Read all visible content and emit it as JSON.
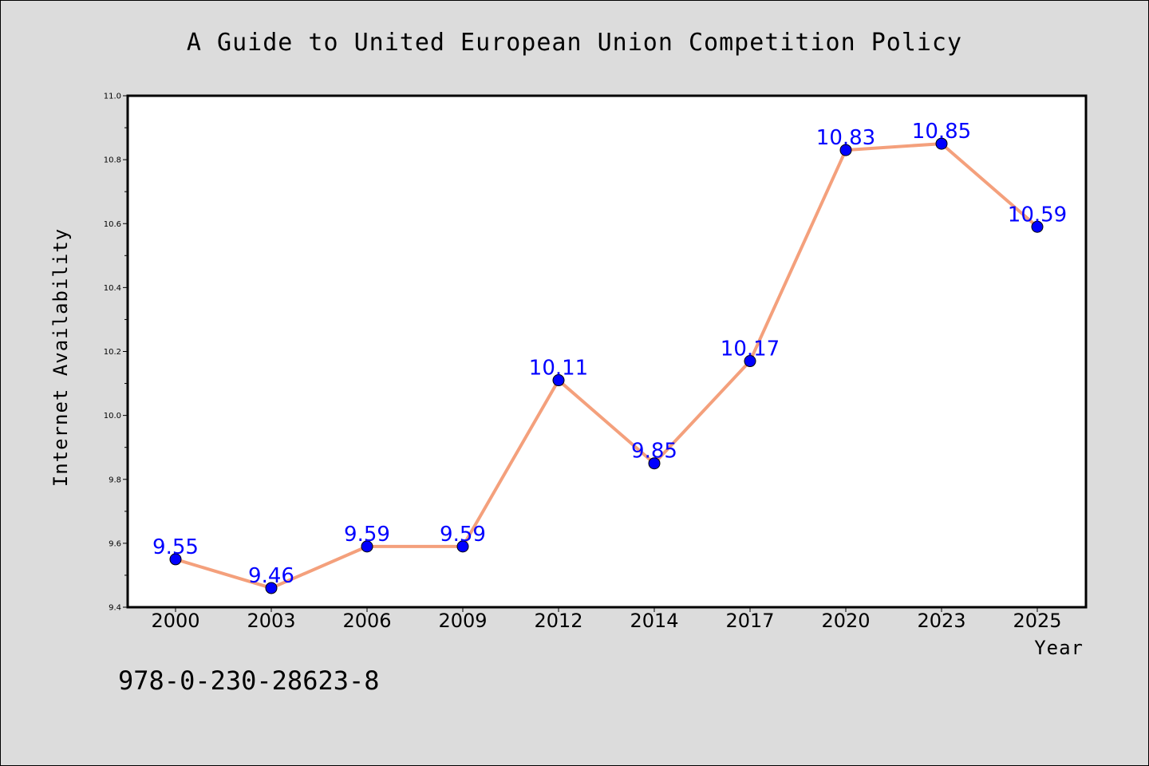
{
  "chart_data": {
    "type": "line",
    "title": "A Guide to United European Union Competition Policy",
    "xlabel": "Year",
    "ylabel": "Internet Availability",
    "categories": [
      "2000",
      "2003",
      "2006",
      "2009",
      "2012",
      "2014",
      "2017",
      "2020",
      "2023",
      "2025"
    ],
    "series": [
      {
        "values": [
          9.55,
          9.46,
          9.59,
          9.59,
          10.11,
          9.85,
          10.17,
          10.83,
          10.85,
          10.59
        ],
        "line_color": "#f4a07c",
        "marker_color": "#0000ff"
      }
    ],
    "data_labels": [
      "9.55",
      "9.46",
      "9.59",
      "9.59",
      "10.11",
      "9.85",
      "10.17",
      "10.83",
      "10.85",
      "10.59"
    ],
    "ylim": [
      9.4,
      11.0
    ],
    "yticks": [
      "9.4",
      "9.6",
      "9.8",
      "10.0",
      "10.2",
      "10.4",
      "10.6",
      "10.8",
      "11.0"
    ],
    "grid": false,
    "legend": "none"
  },
  "annotation": {
    "isbn": "978-0-230-28623-8"
  },
  "colors": {
    "background": "#dcdcdc",
    "plot_background": "#ffffff",
    "line": "#f4a07c",
    "marker": "#0000ff",
    "data_label": "#0000ff"
  }
}
